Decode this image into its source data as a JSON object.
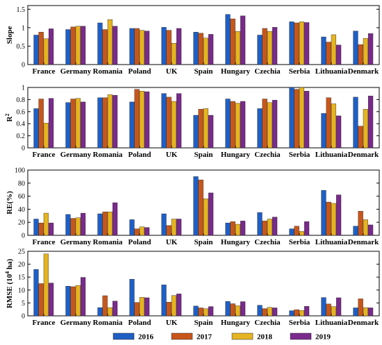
{
  "colors": [
    "#1f5fc4",
    "#c8561a",
    "#e5b422",
    "#7a2a8c"
  ],
  "legend": [
    "2016",
    "2017",
    "2018",
    "2019"
  ],
  "chart_data": [
    {
      "type": "bar",
      "ylabel": "Slope",
      "ylim": [
        0,
        1.6
      ],
      "yticks": [
        0,
        0.5,
        1,
        1.5
      ],
      "ytick_labels": [
        "0",
        "0.5",
        "1",
        "1.5"
      ],
      "categories": [
        "France",
        "Germany",
        "Romania",
        "Poland",
        "UK",
        "Spain",
        "Hungary",
        "Czechia",
        "Serbia",
        "Lithuania",
        "Denmark"
      ],
      "series": [
        {
          "name": "2016",
          "values": [
            0.8,
            0.95,
            1.13,
            0.98,
            1.01,
            0.88,
            1.36,
            0.8,
            1.16,
            0.75,
            0.91
          ]
        },
        {
          "name": "2017",
          "values": [
            0.88,
            1.02,
            0.95,
            0.98,
            0.93,
            0.85,
            1.24,
            0.98,
            1.13,
            0.61,
            0.54
          ]
        },
        {
          "name": "2018",
          "values": [
            0.7,
            1.04,
            1.22,
            0.93,
            0.58,
            0.72,
            0.9,
            0.9,
            1.16,
            0.81,
            0.71
          ]
        },
        {
          "name": "2019",
          "values": [
            0.97,
            1.04,
            1.04,
            0.91,
            0.98,
            0.82,
            1.32,
            1.01,
            1.14,
            0.53,
            0.84
          ]
        }
      ]
    },
    {
      "type": "bar",
      "ylabel": "R",
      "ylabel_sup": "2",
      "ylim": [
        0,
        1
      ],
      "yticks": [
        0,
        0.2,
        0.4,
        0.6,
        0.8,
        1
      ],
      "ytick_labels": [
        "0",
        "0.2",
        "0.4",
        "0.6",
        "0.8",
        "1"
      ],
      "categories": [
        "France",
        "Germany",
        "Romania",
        "Poland",
        "UK",
        "Spain",
        "Hungary",
        "Czechia",
        "Serbia",
        "Lithuania",
        "Denmark"
      ],
      "series": [
        {
          "name": "2016",
          "values": [
            0.65,
            0.75,
            0.83,
            0.76,
            0.9,
            0.54,
            0.81,
            0.65,
            1.0,
            0.57,
            0.84
          ]
        },
        {
          "name": "2017",
          "values": [
            0.81,
            0.81,
            0.83,
            0.97,
            0.84,
            0.64,
            0.77,
            0.81,
            0.97,
            0.83,
            0.36
          ]
        },
        {
          "name": "2018",
          "values": [
            0.41,
            0.82,
            0.88,
            0.94,
            0.77,
            0.65,
            0.74,
            0.75,
            1.0,
            0.73,
            0.64
          ]
        },
        {
          "name": "2019",
          "values": [
            0.82,
            0.76,
            0.87,
            0.93,
            0.9,
            0.54,
            0.77,
            0.79,
            0.94,
            0.53,
            0.86
          ]
        }
      ]
    },
    {
      "type": "bar",
      "ylabel": "RE(%)",
      "ylim": [
        0,
        100
      ],
      "yticks": [
        0,
        20,
        40,
        60,
        80,
        100
      ],
      "ytick_labels": [
        "0",
        "20",
        "40",
        "60",
        "80",
        "100"
      ],
      "categories": [
        "France",
        "Germany",
        "Romania",
        "Poland",
        "UK",
        "Spain",
        "Hungary",
        "Czechia",
        "Serbia",
        "Lithuania",
        "Denmark"
      ],
      "series": [
        {
          "name": "2016",
          "values": [
            25,
            32,
            33,
            24,
            33,
            90,
            19,
            35,
            10,
            69,
            14
          ]
        },
        {
          "name": "2017",
          "values": [
            19,
            26,
            36,
            10,
            15,
            85,
            21,
            22,
            14,
            51,
            37
          ]
        },
        {
          "name": "2018",
          "values": [
            34,
            27,
            36,
            13,
            25,
            56,
            17,
            25,
            6,
            49,
            24
          ]
        },
        {
          "name": "2019",
          "values": [
            19,
            34,
            50,
            12,
            25,
            65,
            22,
            28,
            21,
            62,
            16
          ]
        }
      ]
    },
    {
      "type": "bar",
      "ylabel": "RMSE (10",
      "ylabel_sup": "4",
      "ylabel_end": " ha)",
      "ylim": [
        0,
        25
      ],
      "yticks": [
        0,
        5,
        10,
        15,
        20,
        25
      ],
      "ytick_labels": [
        "0",
        "5",
        "10",
        "15",
        "20",
        "25"
      ],
      "categories": [
        "France",
        "Germany",
        "Romania",
        "Poland",
        "UK",
        "Spain",
        "Hungary",
        "Czechia",
        "Serbia",
        "Lithuania",
        "Denmark"
      ],
      "series": [
        {
          "name": "2016",
          "values": [
            18,
            11.5,
            3.2,
            14.2,
            12,
            3.8,
            5.6,
            4.1,
            2,
            7.1,
            3.1
          ]
        },
        {
          "name": "2017",
          "values": [
            12.5,
            11.3,
            7.8,
            5.2,
            5.3,
            3.1,
            4.7,
            2.8,
            2.4,
            4.6,
            6.6
          ]
        },
        {
          "name": "2018",
          "values": [
            24,
            11.8,
            3.2,
            7.2,
            7.9,
            2.8,
            3.9,
            3.3,
            2.1,
            3.6,
            3.2
          ]
        },
        {
          "name": "2019",
          "values": [
            12.7,
            14.9,
            5.7,
            7,
            8.5,
            3.6,
            5.5,
            3.1,
            3.7,
            7,
            3.1
          ]
        }
      ]
    }
  ]
}
